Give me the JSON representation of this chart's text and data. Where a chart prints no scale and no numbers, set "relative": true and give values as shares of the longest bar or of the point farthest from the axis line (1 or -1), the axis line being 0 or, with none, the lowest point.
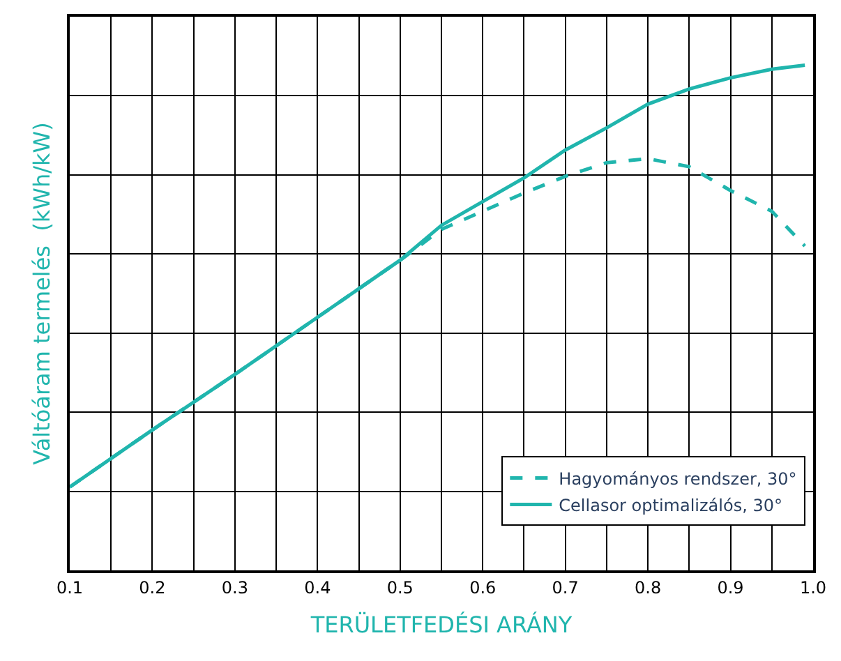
{
  "chart_data": {
    "type": "line",
    "relative": true,
    "xlabel": "TERÜLETFEDÉSI ARÁNY",
    "ylabel": "Váltóáram termelés  (kWh/kW)",
    "x": [
      0.1,
      0.2,
      0.3,
      0.4,
      0.5,
      0.55,
      0.6,
      0.65,
      0.7,
      0.75,
      0.8,
      0.85,
      0.9,
      0.95,
      0.99
    ],
    "xlim": [
      0.1,
      1.0
    ],
    "xticks": [
      0.1,
      0.2,
      0.3,
      0.4,
      0.5,
      0.6,
      0.7,
      0.8,
      0.9,
      {
        "value": 1.0,
        "label": "1.0"
      }
    ],
    "grid": true,
    "legend": "bottom right",
    "series": [
      {
        "name": "Hagyományos rendszer, 30°",
        "color": "#20b5ad",
        "line_style": "dashed",
        "values": [
          0.165,
          0.278,
          0.388,
          0.501,
          0.614,
          0.675,
          0.711,
          0.747,
          0.78,
          0.807,
          0.815,
          0.799,
          0.752,
          0.711,
          0.642
        ]
      },
      {
        "name": "Cellasor optimalizálós, 30°",
        "color": "#20b5ad",
        "line_style": "solid",
        "values": [
          0.165,
          0.278,
          0.388,
          0.501,
          0.614,
          0.683,
          0.73,
          0.777,
          0.832,
          0.876,
          0.923,
          0.953,
          0.975,
          0.992,
          1.0
        ]
      }
    ]
  }
}
